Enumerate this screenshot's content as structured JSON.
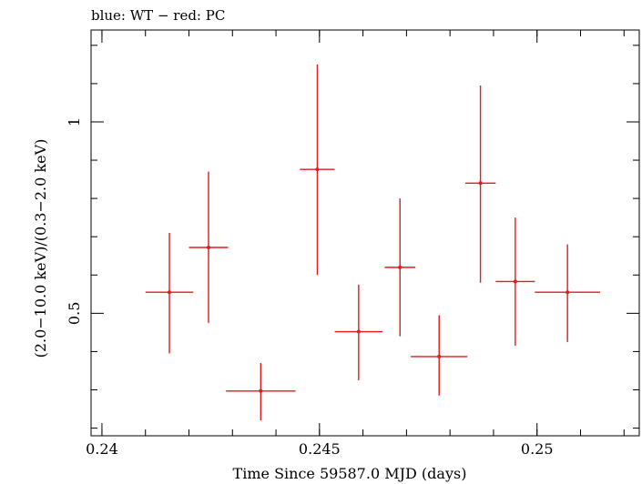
{
  "chart_data": {
    "type": "scatter",
    "title": "blue: WT − red: PC",
    "xlabel": "Time Since 59587.0 MJD (days)",
    "ylabel": "(2.0−10.0 keV)/(0.3−2.0 keV)",
    "xlim": [
      0.23975,
      0.25235
    ],
    "ylim": [
      0.18,
      1.24
    ],
    "x_ticks": [
      {
        "value": 0.24,
        "label": "0.24"
      },
      {
        "value": 0.245,
        "label": "0.245"
      },
      {
        "value": 0.25,
        "label": "0.25"
      }
    ],
    "y_ticks": [
      {
        "value": 0.5,
        "label": "0.5"
      },
      {
        "value": 1.0,
        "label": "1"
      }
    ],
    "grid": false,
    "series": [
      {
        "color": "#e41a1c",
        "points": [
          {
            "x": 0.24155,
            "xerr": 0.00055,
            "y": 0.555,
            "ylo": 0.395,
            "yhi": 0.71
          },
          {
            "x": 0.24245,
            "xerr": 0.00045,
            "y": 0.672,
            "ylo": 0.475,
            "yhi": 0.87
          },
          {
            "x": 0.24365,
            "xerr": 0.0008,
            "y": 0.297,
            "ylo": 0.22,
            "yhi": 0.37
          },
          {
            "x": 0.24495,
            "xerr": 0.0004,
            "y": 0.876,
            "ylo": 0.6,
            "yhi": 1.15
          },
          {
            "x": 0.2459,
            "xerr": 0.00055,
            "y": 0.452,
            "ylo": 0.325,
            "yhi": 0.575
          },
          {
            "x": 0.24685,
            "xerr": 0.00035,
            "y": 0.62,
            "ylo": 0.44,
            "yhi": 0.8
          },
          {
            "x": 0.24775,
            "xerr": 0.00065,
            "y": 0.387,
            "ylo": 0.285,
            "yhi": 0.495
          },
          {
            "x": 0.2487,
            "xerr": 0.00035,
            "y": 0.84,
            "ylo": 0.58,
            "yhi": 1.095
          },
          {
            "x": 0.2495,
            "xerr": 0.00045,
            "y": 0.583,
            "ylo": 0.415,
            "yhi": 0.75
          },
          {
            "x": 0.2507,
            "xerr": 0.00075,
            "y": 0.555,
            "ylo": 0.425,
            "yhi": 0.68
          }
        ]
      }
    ]
  }
}
